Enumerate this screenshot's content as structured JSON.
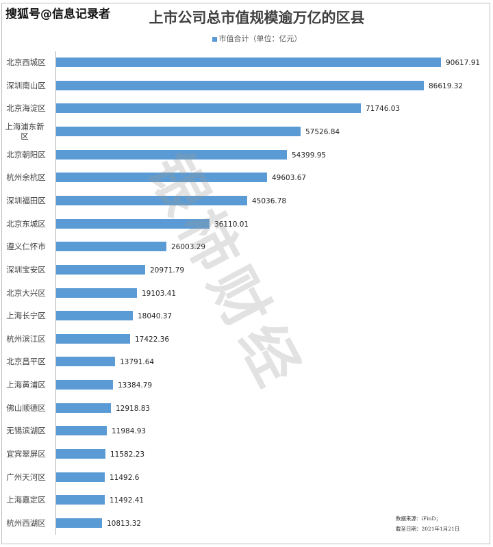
{
  "header": {
    "source_watermark": "搜狐号@信息记录者",
    "title": "上市公司总市值规模逾万亿的区县",
    "legend_label": "市值合计（单位：亿元）"
  },
  "watermark_text": "银柿财经",
  "footnotes": {
    "source": "数据来源：iFinD；",
    "date": "截至日期：2021年1月21日"
  },
  "colors": {
    "bar": "#5b9bd5",
    "axis": "#b0b0b0",
    "text": "#404040"
  },
  "chart_data": {
    "type": "bar",
    "orientation": "horizontal",
    "title": "上市公司总市值规模逾万亿的区县",
    "xlabel": "",
    "ylabel": "",
    "legend": [
      "市值合计（单位：亿元）"
    ],
    "legend_position": "top",
    "grid": false,
    "xlim": [
      0,
      90617.91
    ],
    "categories": [
      "北京西城区",
      "深圳南山区",
      "北京海淀区",
      "上海浦东新区",
      "北京朝阳区",
      "杭州余杭区",
      "深圳福田区",
      "北京东城区",
      "遵义仁怀市",
      "深圳宝安区",
      "北京大兴区",
      "上海长宁区",
      "杭州滨江区",
      "北京昌平区",
      "上海黄浦区",
      "佛山顺德区",
      "无锡滨湖区",
      "宜宾翠屏区",
      "广州天河区",
      "上海嘉定区",
      "杭州西湖区"
    ],
    "series": [
      {
        "name": "市值合计（单位：亿元）",
        "values": [
          90617.91,
          86619.32,
          71746.03,
          57526.84,
          54399.95,
          49603.67,
          45036.78,
          36110.01,
          26003.29,
          20971.79,
          19103.41,
          18040.37,
          17422.36,
          13791.64,
          13384.79,
          12918.83,
          11984.93,
          11582.23,
          11492.6,
          11492.41,
          10813.32
        ],
        "labels": [
          "90617.91",
          "86619.32",
          "71746.03",
          "57526.84",
          "54399.95",
          "49603.67",
          "45036.78",
          "36110.01",
          "26003.29",
          "20971.79",
          "19103.41",
          "18040.37",
          "17422.36",
          "13791.64",
          "13384.79",
          "12918.83",
          "11984.93",
          "11582.23",
          "11492.6",
          "11492.41",
          "10813.32"
        ]
      }
    ],
    "annotations": [
      "数据来源：iFinD；",
      "截至日期：2021年1月21日"
    ]
  }
}
